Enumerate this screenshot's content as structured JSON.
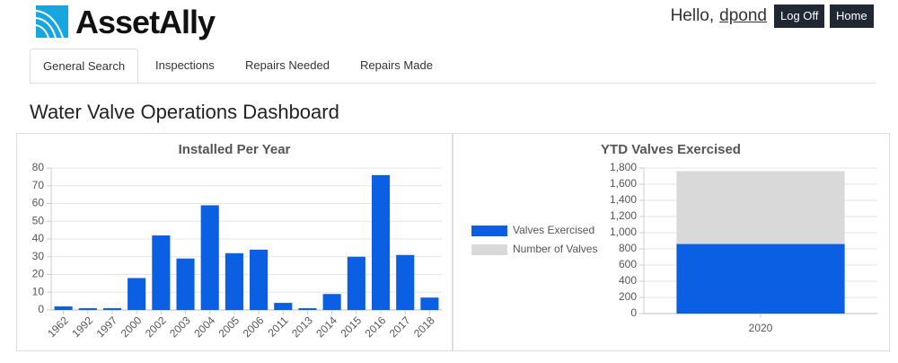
{
  "header": {
    "logo": "AssetAlly",
    "greeting": "Hello,",
    "user": "dpond",
    "buttons": [
      "Log Off",
      "Home"
    ]
  },
  "nav": {
    "tabs": [
      "General Search",
      "Inspections",
      "Repairs Needed",
      "Repairs Made"
    ]
  },
  "title": "Water Valve Operations Dashboard",
  "chart_data": [
    {
      "type": "bar",
      "title": "Installed Per Year",
      "categories": [
        "1962",
        "1992",
        "1997",
        "2000",
        "2002",
        "2003",
        "2004",
        "2005",
        "2006",
        "2011",
        "2013",
        "2014",
        "2015",
        "2016",
        "2017",
        "2018"
      ],
      "values": [
        2,
        1,
        1,
        18,
        42,
        29,
        59,
        32,
        34,
        4,
        1,
        9,
        30,
        76,
        31,
        7
      ],
      "color": "#0a5fe3",
      "ylim": [
        0,
        80
      ],
      "yticks": [
        0,
        10,
        20,
        30,
        40,
        50,
        60,
        70,
        80
      ],
      "grid": true
    },
    {
      "type": "bar",
      "title": "YTD Valves Exercised",
      "stacked": false,
      "legend": "left",
      "categories": [
        "2020"
      ],
      "series": [
        {
          "name": "Valves Exercised",
          "color": "#0a5fe3",
          "values": [
            860
          ]
        },
        {
          "name": "Number of Valves",
          "color": "#d9d9d9",
          "values": [
            1760
          ]
        }
      ],
      "ylim": [
        0,
        1800
      ],
      "yticks": [
        0,
        200,
        400,
        600,
        800,
        {
          "value": 1000,
          "label": "1,000"
        },
        {
          "value": 1200,
          "label": "1,200"
        },
        {
          "value": 1400,
          "label": "1,400"
        },
        {
          "value": 1600,
          "label": "1,600"
        },
        {
          "value": 1800,
          "label": "1,800"
        }
      ],
      "grid": true
    }
  ]
}
